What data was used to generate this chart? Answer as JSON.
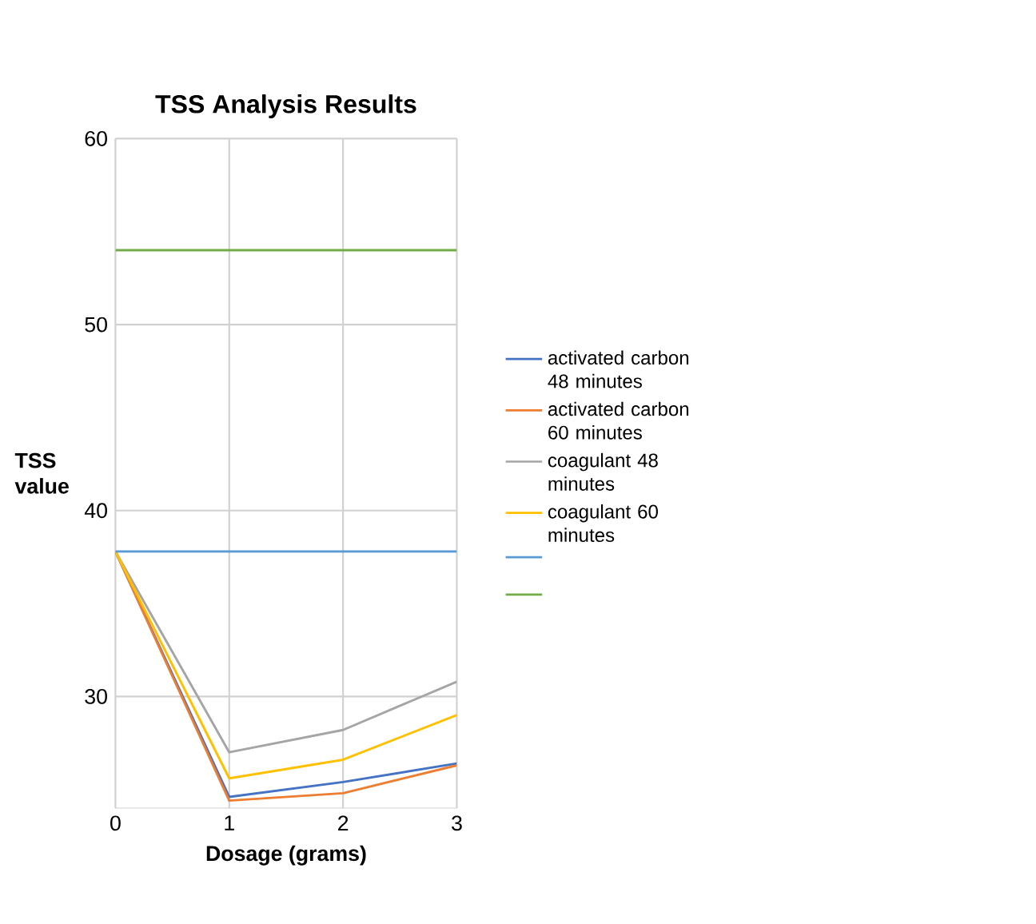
{
  "chart_data": {
    "type": "line",
    "title": "TSS Analysis Results",
    "xlabel": "Dosage (grams)",
    "ylabel": "TSS value",
    "x": [
      0,
      1,
      2,
      3
    ],
    "xlim": [
      0,
      3
    ],
    "xticks": [
      0,
      1,
      2,
      3
    ],
    "ylim": [
      24,
      60
    ],
    "yticks": [
      30,
      40,
      50,
      60
    ],
    "grid": true,
    "legend": "right",
    "series": [
      {
        "name": "activated carbon 48 minutes",
        "color": "#4472c4",
        "values": [
          37.8,
          24.6,
          25.4,
          26.4
        ]
      },
      {
        "name": "activated carbon 60 minutes",
        "color": "#ed7d31",
        "values": [
          37.8,
          24.4,
          24.8,
          26.3
        ]
      },
      {
        "name": "coagulant 48 minutes",
        "color": "#a5a5a5",
        "values": [
          37.8,
          27.0,
          28.2,
          30.8
        ]
      },
      {
        "name": "coagulant 60 minutes",
        "color": "#ffc000",
        "values": [
          37.8,
          25.6,
          26.6,
          29.0
        ]
      },
      {
        "color": "#5b9bd5",
        "values": [
          37.8,
          37.8,
          37.8,
          37.8
        ]
      },
      {
        "color": "#70ad47",
        "values": [
          54.0,
          54.0,
          54.0,
          54.0
        ]
      }
    ]
  }
}
